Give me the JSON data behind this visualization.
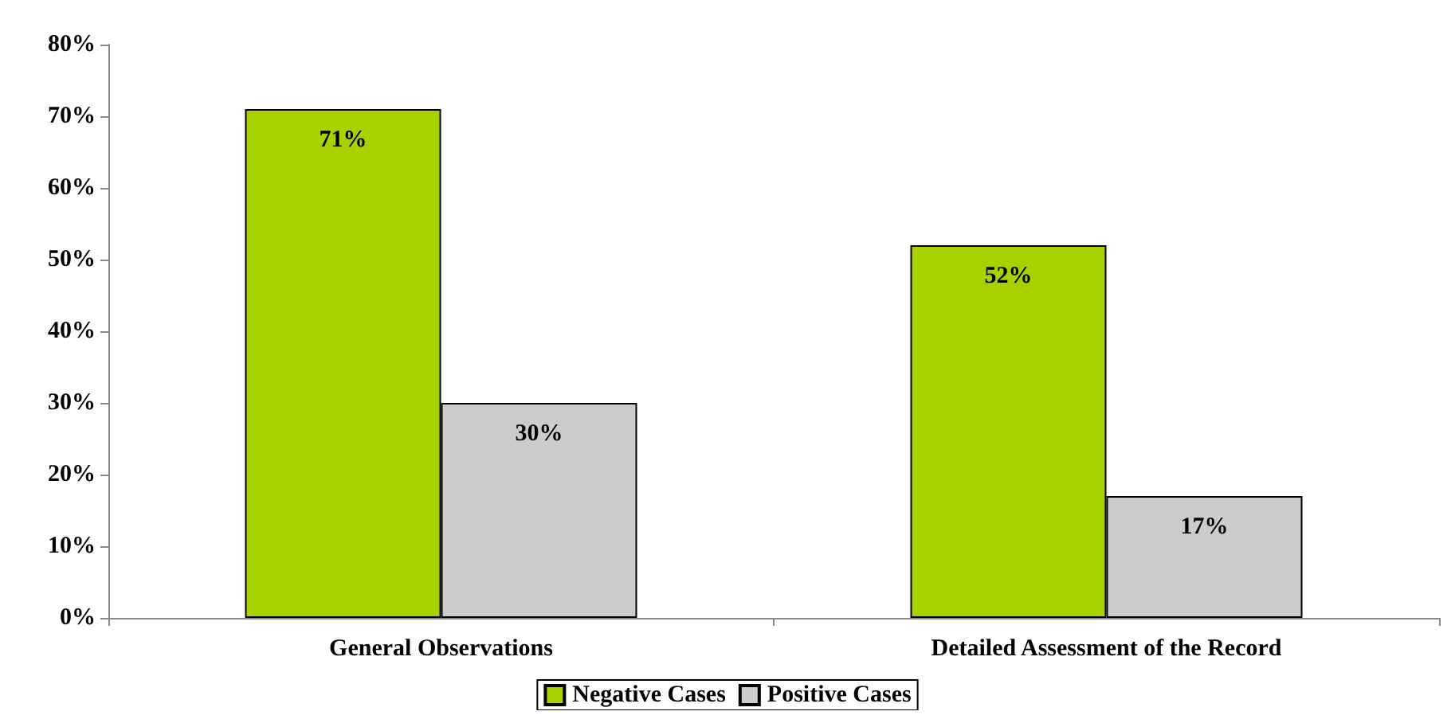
{
  "chart_data": {
    "type": "bar",
    "categories": [
      "General Observations",
      "Detailed Assessment of the Record"
    ],
    "series": [
      {
        "name": "Negative Cases",
        "color": "#a8d100",
        "values": [
          71,
          52
        ],
        "value_labels": [
          "71%",
          "52%"
        ]
      },
      {
        "name": "Positive Cases",
        "color": "#cccccc",
        "values": [
          30,
          17
        ],
        "value_labels": [
          "30%",
          "17%"
        ]
      }
    ],
    "ylim": [
      0,
      80
    ],
    "yticks": [
      {
        "value": 0,
        "label": "0%"
      },
      {
        "value": 10,
        "label": "10%"
      },
      {
        "value": 20,
        "label": "20%"
      },
      {
        "value": 30,
        "label": "30%"
      },
      {
        "value": 40,
        "label": "40%"
      },
      {
        "value": 50,
        "label": "50%"
      },
      {
        "value": 60,
        "label": "60%"
      },
      {
        "value": 70,
        "label": "70%"
      },
      {
        "value": 80,
        "label": "80%"
      }
    ],
    "grid": false,
    "legend": "bottom"
  }
}
